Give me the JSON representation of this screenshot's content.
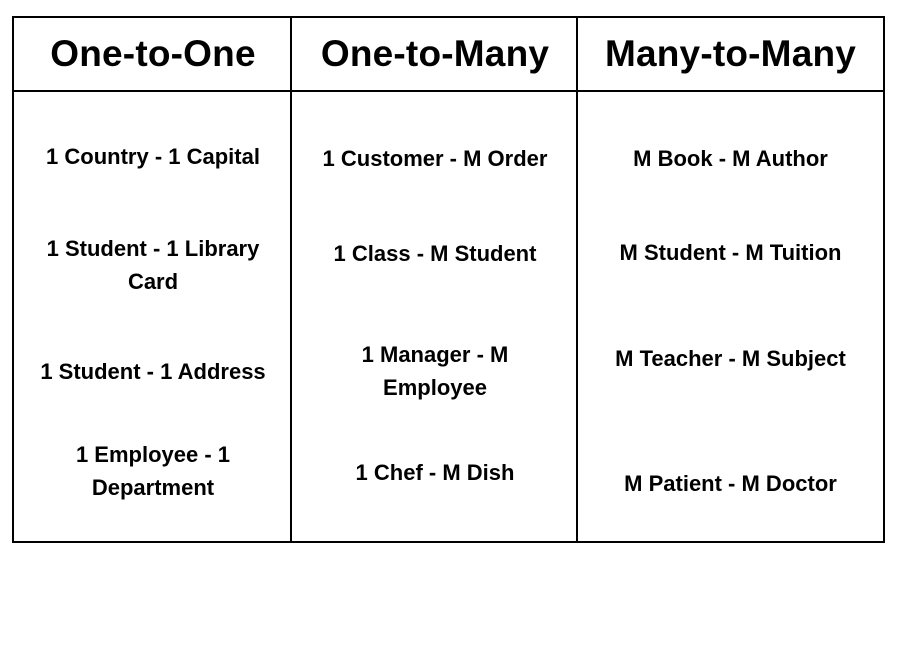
{
  "table": {
    "headers": [
      "One-to-One",
      "One-to-Many",
      "Many-to-Many"
    ],
    "columns": [
      {
        "name": "One-to-One",
        "items": [
          "1 Country - 1 Capital",
          "1 Student - 1 Library Card",
          "1 Student - 1 Address",
          "1 Employee - 1 Department"
        ]
      },
      {
        "name": "One-to-Many",
        "items": [
          "1 Customer - M Order",
          "1 Class - M Student",
          "1 Manager - M Employee",
          "1 Chef - M Dish"
        ]
      },
      {
        "name": "Many-to-Many",
        "items": [
          "M Book - M Author",
          "M Student - M Tuition",
          "M Teacher - M Subject",
          "M Patient - M Doctor"
        ]
      }
    ]
  }
}
